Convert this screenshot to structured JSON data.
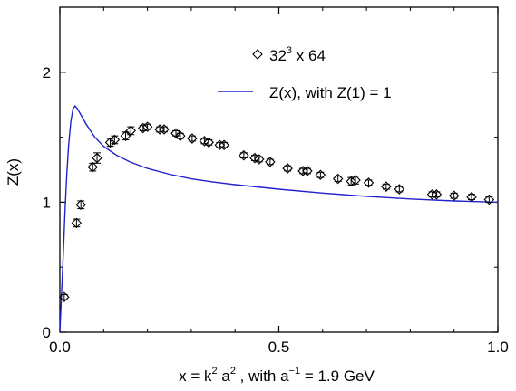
{
  "chart_data": {
    "type": "scatter",
    "xlabel_parts": [
      "x = k",
      "2",
      " a",
      "2",
      " ,  with a",
      "−1",
      " = 1.9 GeV"
    ],
    "ylabel": "Z(x)",
    "xlim": [
      0,
      1.0
    ],
    "ylim": [
      0,
      2.5
    ],
    "x_ticks": [
      0.0,
      0.5,
      1.0
    ],
    "x_tick_labels": [
      "0.0",
      "0.5",
      "1.0"
    ],
    "y_ticks": [
      0,
      1,
      2
    ],
    "y_tick_labels": [
      "0",
      "1",
      "2"
    ],
    "legend_position": "top-right",
    "series": [
      {
        "legend_parts": [
          "32",
          "3",
          " x 64"
        ],
        "marker": "diamond-open",
        "color": "#000000",
        "points": [
          {
            "x": 0.01,
            "y": 0.27,
            "err": 0.02
          },
          {
            "x": 0.038,
            "y": 0.84,
            "err": 0.03
          },
          {
            "x": 0.048,
            "y": 0.98,
            "err": 0.03
          },
          {
            "x": 0.075,
            "y": 1.27,
            "err": 0.03
          },
          {
            "x": 0.085,
            "y": 1.34,
            "err": 0.04
          },
          {
            "x": 0.115,
            "y": 1.46,
            "err": 0.03
          },
          {
            "x": 0.125,
            "y": 1.48,
            "err": 0.03
          },
          {
            "x": 0.15,
            "y": 1.51,
            "err": 0.03
          },
          {
            "x": 0.162,
            "y": 1.55,
            "err": 0.03
          },
          {
            "x": 0.19,
            "y": 1.57,
            "err": 0.02
          },
          {
            "x": 0.2,
            "y": 1.58,
            "err": 0.02
          },
          {
            "x": 0.228,
            "y": 1.56,
            "err": 0.02
          },
          {
            "x": 0.238,
            "y": 1.56,
            "err": 0.02
          },
          {
            "x": 0.265,
            "y": 1.53,
            "err": 0.02
          },
          {
            "x": 0.275,
            "y": 1.51,
            "err": 0.02
          },
          {
            "x": 0.302,
            "y": 1.49,
            "err": 0.02
          },
          {
            "x": 0.33,
            "y": 1.47,
            "err": 0.02
          },
          {
            "x": 0.34,
            "y": 1.46,
            "err": 0.02
          },
          {
            "x": 0.365,
            "y": 1.44,
            "err": 0.02
          },
          {
            "x": 0.375,
            "y": 1.44,
            "err": 0.02
          },
          {
            "x": 0.42,
            "y": 1.36,
            "err": 0.02
          },
          {
            "x": 0.445,
            "y": 1.34,
            "err": 0.02
          },
          {
            "x": 0.455,
            "y": 1.33,
            "err": 0.02
          },
          {
            "x": 0.48,
            "y": 1.31,
            "err": 0.02
          },
          {
            "x": 0.52,
            "y": 1.26,
            "err": 0.02
          },
          {
            "x": 0.555,
            "y": 1.24,
            "err": 0.02
          },
          {
            "x": 0.565,
            "y": 1.24,
            "err": 0.02
          },
          {
            "x": 0.595,
            "y": 1.21,
            "err": 0.02
          },
          {
            "x": 0.635,
            "y": 1.18,
            "err": 0.02
          },
          {
            "x": 0.665,
            "y": 1.16,
            "err": 0.03
          },
          {
            "x": 0.675,
            "y": 1.17,
            "err": 0.03
          },
          {
            "x": 0.705,
            "y": 1.15,
            "err": 0.02
          },
          {
            "x": 0.745,
            "y": 1.12,
            "err": 0.02
          },
          {
            "x": 0.775,
            "y": 1.1,
            "err": 0.02
          },
          {
            "x": 0.85,
            "y": 1.06,
            "err": 0.02
          },
          {
            "x": 0.86,
            "y": 1.06,
            "err": 0.02
          },
          {
            "x": 0.9,
            "y": 1.05,
            "err": 0.02
          },
          {
            "x": 0.94,
            "y": 1.04,
            "err": 0.02
          },
          {
            "x": 0.98,
            "y": 1.02,
            "err": 0.02
          }
        ]
      },
      {
        "legend": "Z(x), with Z(1) = 1",
        "type": "line",
        "color": "#2222cc",
        "points": [
          {
            "x": 0.0,
            "y": 0.0
          },
          {
            "x": 0.004,
            "y": 0.3
          },
          {
            "x": 0.008,
            "y": 0.62
          },
          {
            "x": 0.012,
            "y": 0.95
          },
          {
            "x": 0.016,
            "y": 1.22
          },
          {
            "x": 0.02,
            "y": 1.44
          },
          {
            "x": 0.025,
            "y": 1.62
          },
          {
            "x": 0.03,
            "y": 1.72
          },
          {
            "x": 0.035,
            "y": 1.74
          },
          {
            "x": 0.04,
            "y": 1.72
          },
          {
            "x": 0.05,
            "y": 1.66
          },
          {
            "x": 0.06,
            "y": 1.6
          },
          {
            "x": 0.08,
            "y": 1.5
          },
          {
            "x": 0.1,
            "y": 1.43
          },
          {
            "x": 0.13,
            "y": 1.36
          },
          {
            "x": 0.16,
            "y": 1.31
          },
          {
            "x": 0.2,
            "y": 1.26
          },
          {
            "x": 0.25,
            "y": 1.215
          },
          {
            "x": 0.3,
            "y": 1.18
          },
          {
            "x": 0.35,
            "y": 1.155
          },
          {
            "x": 0.4,
            "y": 1.135
          },
          {
            "x": 0.5,
            "y": 1.1
          },
          {
            "x": 0.6,
            "y": 1.07
          },
          {
            "x": 0.7,
            "y": 1.045
          },
          {
            "x": 0.8,
            "y": 1.025
          },
          {
            "x": 0.9,
            "y": 1.01
          },
          {
            "x": 1.0,
            "y": 1.0
          }
        ]
      }
    ]
  }
}
